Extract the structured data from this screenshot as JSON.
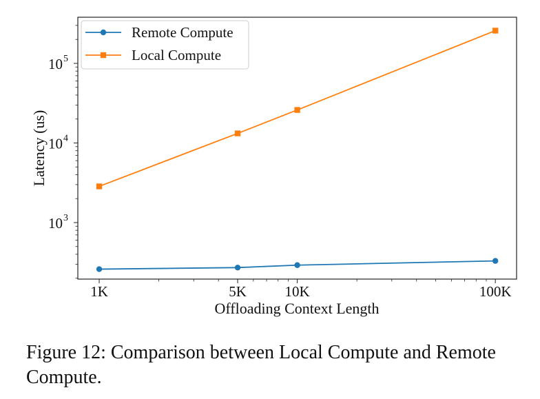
{
  "chart_data": {
    "type": "line",
    "xscale": "log",
    "yscale": "log",
    "xlabel": "Offloading Context Length",
    "ylabel": "Latency (us)",
    "xticks": [
      {
        "value": 1000,
        "label": "1K"
      },
      {
        "value": 5000,
        "label": "5K"
      },
      {
        "value": 10000,
        "label": "10K"
      },
      {
        "value": 100000,
        "label": "100K"
      }
    ],
    "yticks": [
      {
        "value": 1000,
        "base": "10",
        "exp": "3"
      },
      {
        "value": 10000,
        "base": "10",
        "exp": "4"
      },
      {
        "value": 100000,
        "base": "10",
        "exp": "5"
      }
    ],
    "xlim": [
      780,
      128000
    ],
    "ylim": [
      195,
      380000
    ],
    "x": [
      1000,
      5000,
      10000,
      100000
    ],
    "series": [
      {
        "name": "Remote Compute",
        "values": [
          260,
          272,
          292,
          330
        ],
        "color": "#1f77b4",
        "marker": "circle"
      },
      {
        "name": "Local Compute",
        "values": [
          2850,
          13200,
          26000,
          258000
        ],
        "color": "#ff7f0e",
        "marker": "square"
      }
    ],
    "legend_position": "top-left",
    "grid": false
  },
  "caption": "Figure 12: Comparison between Local Compute and Remote Compute."
}
